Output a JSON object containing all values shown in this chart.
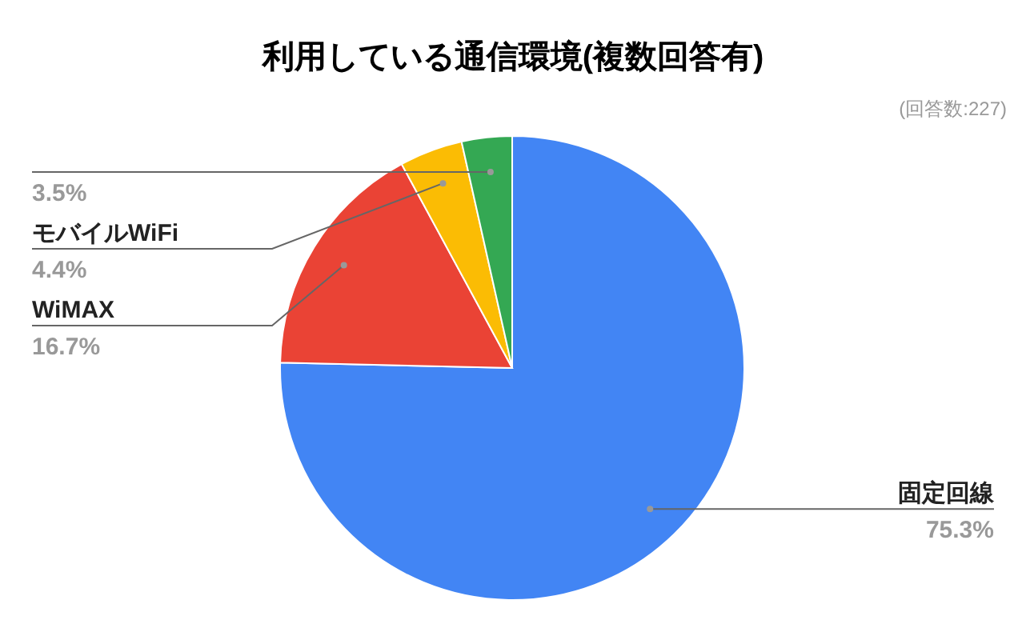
{
  "chart_data": {
    "type": "pie",
    "title": "利用している通信環境(複数回答有)",
    "annotations": [
      "(回答数:227)"
    ],
    "categories": [
      "固定回線",
      "WiMAX",
      "モバイルWiFi",
      null
    ],
    "values": [
      75.3,
      16.7,
      4.4,
      3.5
    ],
    "value_labels": [
      "75.3%",
      "16.7%",
      "4.4%",
      "3.5%"
    ],
    "colors": [
      "#4285f4",
      "#ea4335",
      "#fbbc04",
      "#34a853"
    ],
    "legend": false
  }
}
